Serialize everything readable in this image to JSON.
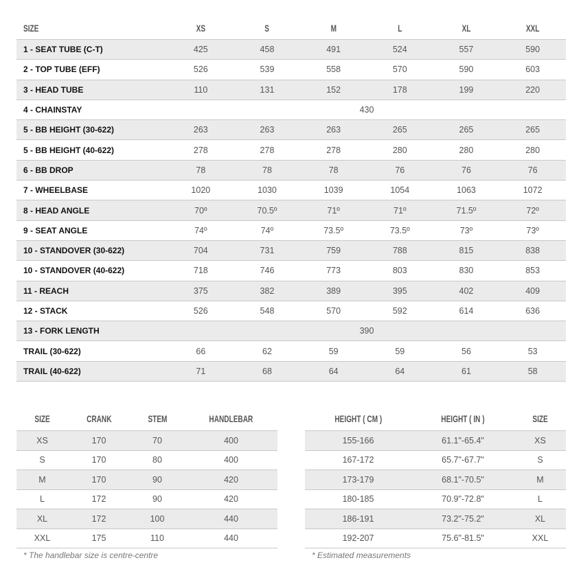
{
  "geometry": {
    "headers": [
      "SIZE",
      "XS",
      "S",
      "M",
      "L",
      "XL",
      "XXL"
    ],
    "rows": [
      {
        "label": "1 - SEAT TUBE (C-T)",
        "values": [
          "425",
          "458",
          "491",
          "524",
          "557",
          "590"
        ]
      },
      {
        "label": "2 - TOP TUBE (EFF)",
        "values": [
          "526",
          "539",
          "558",
          "570",
          "590",
          "603"
        ]
      },
      {
        "label": "3 - HEAD TUBE",
        "values": [
          "110",
          "131",
          "152",
          "178",
          "199",
          "220"
        ]
      },
      {
        "label": "4 - CHAINSTAY",
        "span": "430"
      },
      {
        "label": "5 - BB HEIGHT (30-622)",
        "values": [
          "263",
          "263",
          "263",
          "265",
          "265",
          "265"
        ]
      },
      {
        "label": "5 - BB HEIGHT (40-622)",
        "values": [
          "278",
          "278",
          "278",
          "280",
          "280",
          "280"
        ]
      },
      {
        "label": "6 - BB DROP",
        "values": [
          "78",
          "78",
          "78",
          "76",
          "76",
          "76"
        ]
      },
      {
        "label": "7 - WHEELBASE",
        "values": [
          "1020",
          "1030",
          "1039",
          "1054",
          "1063",
          "1072"
        ]
      },
      {
        "label": "8 - HEAD ANGLE",
        "values": [
          "70º",
          "70.5º",
          "71º",
          "71º",
          "71.5º",
          "72º"
        ]
      },
      {
        "label": "9 - SEAT ANGLE",
        "values": [
          "74º",
          "74º",
          "73.5º",
          "73.5º",
          "73º",
          "73º"
        ]
      },
      {
        "label": "10 - STANDOVER (30-622)",
        "values": [
          "704",
          "731",
          "759",
          "788",
          "815",
          "838"
        ]
      },
      {
        "label": "10 - STANDOVER (40-622)",
        "values": [
          "718",
          "746",
          "773",
          "803",
          "830",
          "853"
        ]
      },
      {
        "label": "11 - REACH",
        "values": [
          "375",
          "382",
          "389",
          "395",
          "402",
          "409"
        ]
      },
      {
        "label": "12 - STACK",
        "values": [
          "526",
          "548",
          "570",
          "592",
          "614",
          "636"
        ]
      },
      {
        "label": "13 - FORK LENGTH",
        "span": "390"
      },
      {
        "label": "TRAIL (30-622)",
        "values": [
          "66",
          "62",
          "59",
          "59",
          "56",
          "53"
        ]
      },
      {
        "label": "TRAIL (40-622)",
        "values": [
          "71",
          "68",
          "64",
          "64",
          "61",
          "58"
        ]
      }
    ]
  },
  "components": {
    "headers": [
      "SIZE",
      "CRANK",
      "STEM",
      "HANDLEBAR"
    ],
    "rows": [
      [
        "XS",
        "170",
        "70",
        "400"
      ],
      [
        "S",
        "170",
        "80",
        "400"
      ],
      [
        "M",
        "170",
        "90",
        "420"
      ],
      [
        "L",
        "172",
        "90",
        "420"
      ],
      [
        "XL",
        "172",
        "100",
        "440"
      ],
      [
        "XXL",
        "175",
        "110",
        "440"
      ]
    ],
    "note": "* The handlebar size is centre-centre"
  },
  "fit": {
    "headers": [
      "HEIGHT ( CM )",
      "HEIGHT ( IN )",
      "SIZE"
    ],
    "rows": [
      [
        "155-166",
        "61.1\"-65.4\"",
        "XS"
      ],
      [
        "167-172",
        "65.7\"-67.7\"",
        "S"
      ],
      [
        "173-179",
        "68.1\"-70.5\"",
        "M"
      ],
      [
        "180-185",
        "70.9\"-72.8\"",
        "L"
      ],
      [
        "186-191",
        "73.2\"-75.2\"",
        "XL"
      ],
      [
        "192-207",
        "75.6\"-81.5\"",
        "XXL"
      ]
    ],
    "note": "* Estimated measurements"
  }
}
